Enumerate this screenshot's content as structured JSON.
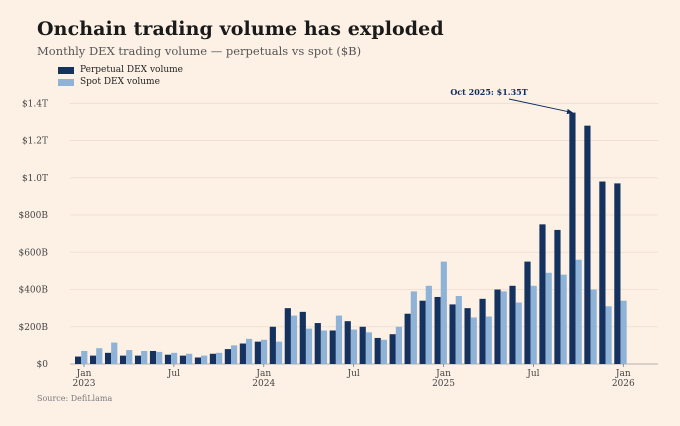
{
  "title": "Onchain trading volume has exploded",
  "subtitle": "Monthly DEX trading volume — perpetuals vs spot ($B)",
  "source": "Source: DefiLlama",
  "chart_data": {
    "type": "bar",
    "title": "Onchain trading volume has exploded",
    "subtitle": "Monthly DEX trading volume — perpetuals vs spot ($B)",
    "xlabel": "",
    "ylabel": "",
    "ylim": [
      0,
      1450
    ],
    "grid": true,
    "legend_placement": "top-left",
    "y_ticks": [
      {
        "value": 0,
        "label": "$0"
      },
      {
        "value": 200,
        "label": "$200B"
      },
      {
        "value": 400,
        "label": "$400B"
      },
      {
        "value": 600,
        "label": "$600B"
      },
      {
        "value": 800,
        "label": "$800B"
      },
      {
        "value": 1000,
        "label": "$1.0T"
      },
      {
        "value": 1200,
        "label": "$1.2T"
      },
      {
        "value": 1400,
        "label": "$1.4T"
      }
    ],
    "x_ticks": [
      {
        "index": 0,
        "label": "Jan",
        "sublabel": "2023"
      },
      {
        "index": 6,
        "label": "Jul",
        "sublabel": ""
      },
      {
        "index": 12,
        "label": "Jan",
        "sublabel": "2024"
      },
      {
        "index": 18,
        "label": "Jul",
        "sublabel": ""
      },
      {
        "index": 24,
        "label": "Jan",
        "sublabel": "2025"
      },
      {
        "index": 30,
        "label": "Jul",
        "sublabel": ""
      },
      {
        "index": 36,
        "label": "Jan",
        "sublabel": "2026"
      }
    ],
    "categories": [
      "2023-01",
      "2023-02",
      "2023-03",
      "2023-04",
      "2023-05",
      "2023-06",
      "2023-07",
      "2023-08",
      "2023-09",
      "2023-10",
      "2023-11",
      "2023-12",
      "2024-01",
      "2024-02",
      "2024-03",
      "2024-04",
      "2024-05",
      "2024-06",
      "2024-07",
      "2024-08",
      "2024-09",
      "2024-10",
      "2024-11",
      "2024-12",
      "2025-01",
      "2025-02",
      "2025-03",
      "2025-04",
      "2025-05",
      "2025-06",
      "2025-07",
      "2025-08",
      "2025-09",
      "2025-10",
      "2025-11",
      "2025-12",
      "2026-01"
    ],
    "series": [
      {
        "name": "Perpetual DEX volume",
        "color": "#15325f",
        "values": [
          40,
          45,
          60,
          45,
          45,
          70,
          50,
          45,
          35,
          55,
          80,
          110,
          120,
          200,
          300,
          280,
          220,
          180,
          230,
          200,
          140,
          160,
          270,
          340,
          360,
          320,
          300,
          350,
          400,
          420,
          550,
          750,
          720,
          1350,
          1280,
          980,
          970
        ]
      },
      {
        "name": "Spot DEX volume",
        "color": "#8fb3d6",
        "values": [
          70,
          85,
          115,
          75,
          70,
          65,
          60,
          55,
          45,
          60,
          100,
          135,
          130,
          120,
          260,
          190,
          180,
          260,
          185,
          170,
          130,
          200,
          390,
          420,
          550,
          365,
          250,
          255,
          390,
          330,
          420,
          490,
          480,
          560,
          400,
          310,
          340
        ]
      }
    ],
    "annotations": [
      {
        "text": "Oct 2025: $1.35T",
        "category": "2025-10",
        "value": 1350
      }
    ]
  }
}
